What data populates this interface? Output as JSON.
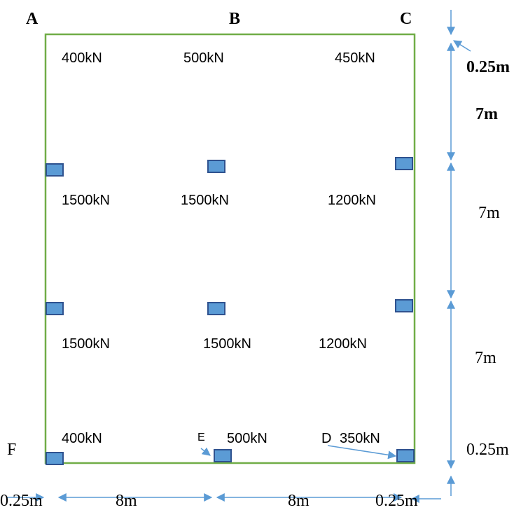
{
  "corners": {
    "A": "A",
    "B": "B",
    "C": "C",
    "F": "F",
    "E": "E",
    "D": "D"
  },
  "loads": {
    "row1": [
      "400kN",
      "500kN",
      "450kN"
    ],
    "row2": [
      "1500kN",
      "1500kN",
      "1200kN"
    ],
    "row3": [
      "1500kN",
      "1500kN",
      "1200kN"
    ],
    "row4": [
      "400kN",
      "500kN",
      "350kN"
    ]
  },
  "dims_vertical": [
    "0.25m",
    "7m",
    "7m",
    "7m",
    "0.25m"
  ],
  "dims_horizontal": [
    "0.25m",
    "8m",
    "8m",
    "0.25m"
  ],
  "colors": {
    "outline": "#70ad47",
    "column_fill": "#5b9bd5",
    "column_stroke": "#2f528f",
    "arrow": "#5b9bd5"
  }
}
